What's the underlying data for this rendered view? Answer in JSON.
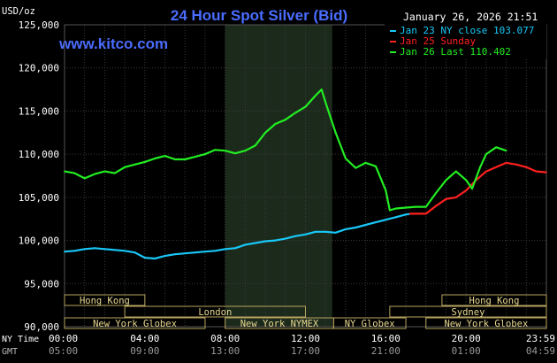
{
  "chart_data": {
    "type": "line",
    "title": "24 Hour Spot Silver (Bid)",
    "watermark": "www.kitco.com",
    "timestamp": "January 26, 2026 21:51",
    "ylabel": "USD/oz",
    "ylim": [
      90000,
      125000
    ],
    "y_ticks": [
      "125,000",
      "120,000",
      "115,000",
      "110,000",
      "105,000",
      "100,000",
      "95,000",
      "90,000"
    ],
    "x_axis_rows": [
      {
        "label": "NY Time",
        "ticks": [
          "00:00",
          "04:00",
          "08:00",
          "12:00",
          "16:00",
          "20:00",
          "23:59"
        ]
      },
      {
        "label": "GMT",
        "ticks": [
          "05:00",
          "09:00",
          "13:00",
          "17:00",
          "21:00",
          "01:00",
          "04:59"
        ]
      }
    ],
    "x_range_hours": [
      0,
      24
    ],
    "grid": true,
    "highlight_window": {
      "start_hour": 8,
      "end_hour": 13.33
    },
    "legend": {
      "placement": "top-right",
      "entries": [
        {
          "text": "Jan 23 NY close 103.077",
          "color": "#18c8f8"
        },
        {
          "text": "Jan 25 Sunday",
          "color": "#ff2020"
        },
        {
          "text": "Jan 26 Last 110.402",
          "color": "#22ee22"
        }
      ]
    },
    "markets": [
      {
        "name": "Hong Kong",
        "start_hour": 0,
        "end_hour": 4.0,
        "row": 0
      },
      {
        "name": "Hong Kong",
        "start_hour": 18.8,
        "end_hour": 24,
        "row": 0
      },
      {
        "name": "London",
        "start_hour": 3.0,
        "end_hour": 12.0,
        "row": 1
      },
      {
        "name": "Sydney",
        "start_hour": 16.2,
        "end_hour": 24,
        "row": 1
      },
      {
        "name": "New York Globex",
        "start_hour": 0,
        "end_hour": 7.0,
        "row": 2
      },
      {
        "name": "New York NYMEX",
        "start_hour": 8.0,
        "end_hour": 13.4,
        "row": 2
      },
      {
        "name": "NY Globex",
        "start_hour": 13.4,
        "end_hour": 17.0,
        "row": 2
      },
      {
        "name": "New York Globex",
        "start_hour": 18.0,
        "end_hour": 24,
        "row": 2
      }
    ],
    "series": [
      {
        "name": "Jan 23 NY close 103.077",
        "color": "#18c8f8",
        "x": [
          0,
          0.5,
          1.0,
          1.5,
          2.0,
          2.5,
          3.0,
          3.5,
          4.0,
          4.5,
          5.0,
          5.5,
          6.0,
          6.5,
          7.0,
          7.5,
          8.0,
          8.5,
          9.0,
          9.5,
          10.0,
          10.5,
          11.0,
          11.5,
          12.0,
          12.5,
          13.0,
          13.5,
          14.0,
          14.5,
          15.0,
          15.5,
          16.0,
          16.5,
          17.0,
          17.2
        ],
        "y": [
          98700,
          98800,
          99000,
          99100,
          99000,
          98900,
          98800,
          98600,
          98000,
          97900,
          98200,
          98400,
          98500,
          98600,
          98700,
          98800,
          99000,
          99100,
          99500,
          99700,
          99900,
          100000,
          100200,
          100500,
          100700,
          101000,
          101000,
          100900,
          101300,
          101500,
          101800,
          102100,
          102400,
          102700,
          103000,
          103077
        ]
      },
      {
        "name": "Jan 25 Sunday",
        "color": "#ff2020",
        "x": [
          17.2,
          18.0,
          18.5,
          19.0,
          19.5,
          20.0,
          20.5,
          21.0,
          21.5,
          22.0,
          22.5,
          23.0,
          23.5,
          24.0
        ],
        "y": [
          103100,
          103100,
          104000,
          104800,
          105000,
          105800,
          107000,
          108000,
          108500,
          109000,
          108800,
          108500,
          108000,
          107900
        ]
      },
      {
        "name": "Jan 26 Last 110.402",
        "color": "#22ee22",
        "x": [
          0,
          0.5,
          1.0,
          1.5,
          2.0,
          2.5,
          3.0,
          3.5,
          4.0,
          4.5,
          5.0,
          5.5,
          6.0,
          6.5,
          7.0,
          7.5,
          8.0,
          8.5,
          9.0,
          9.5,
          10.0,
          10.5,
          11.0,
          11.5,
          12.0,
          12.5,
          12.8,
          13.0,
          13.5,
          14.0,
          14.5,
          15.0,
          15.5,
          16.0,
          16.2,
          16.5,
          17.0,
          17.5,
          18.0,
          18.5,
          19.0,
          19.5,
          20.0,
          20.3,
          20.7,
          21.0,
          21.5,
          22.0
        ],
        "y": [
          108000,
          107800,
          107200,
          107700,
          108000,
          107800,
          108500,
          108800,
          109100,
          109500,
          109800,
          109400,
          109400,
          109700,
          110000,
          110500,
          110400,
          110100,
          110400,
          111000,
          112500,
          113500,
          114000,
          114800,
          115500,
          116800,
          117500,
          116000,
          112500,
          109500,
          108400,
          109000,
          108600,
          105800,
          103500,
          103700,
          103800,
          103900,
          103900,
          105500,
          107000,
          108000,
          107000,
          106000,
          108500,
          110000,
          110800,
          110402
        ]
      }
    ]
  }
}
